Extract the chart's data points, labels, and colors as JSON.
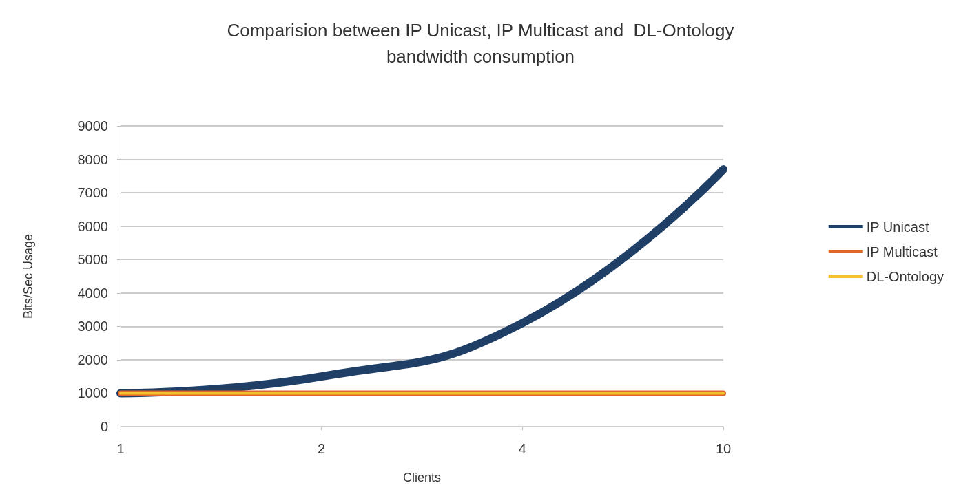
{
  "chart_data": {
    "type": "line",
    "title": "Comparision between IP Unicast, IP Multicast and  DL-Ontology\nbandwidth consumption",
    "xlabel": "Clients",
    "ylabel": "Bits/Sec Usage",
    "categories": [
      "1",
      "2",
      "4",
      "10"
    ],
    "series": [
      {
        "name": "IP Unicast",
        "color": "#1f3f66",
        "values": [
          1000,
          1500,
          3100,
          7700
        ]
      },
      {
        "name": "IP Multicast",
        "color": "#e0662a",
        "values": [
          1000,
          1000,
          1000,
          1000
        ]
      },
      {
        "name": "DL-Ontology",
        "color": "#f2c12e",
        "values": [
          1000,
          1000,
          1000,
          1000
        ]
      }
    ],
    "ylim": [
      0,
      9000
    ],
    "yticks": [
      0,
      1000,
      2000,
      3000,
      4000,
      5000,
      6000,
      7000,
      8000,
      9000
    ],
    "grid": "y",
    "legend": "right",
    "marker": "none",
    "line_style": "solid"
  }
}
